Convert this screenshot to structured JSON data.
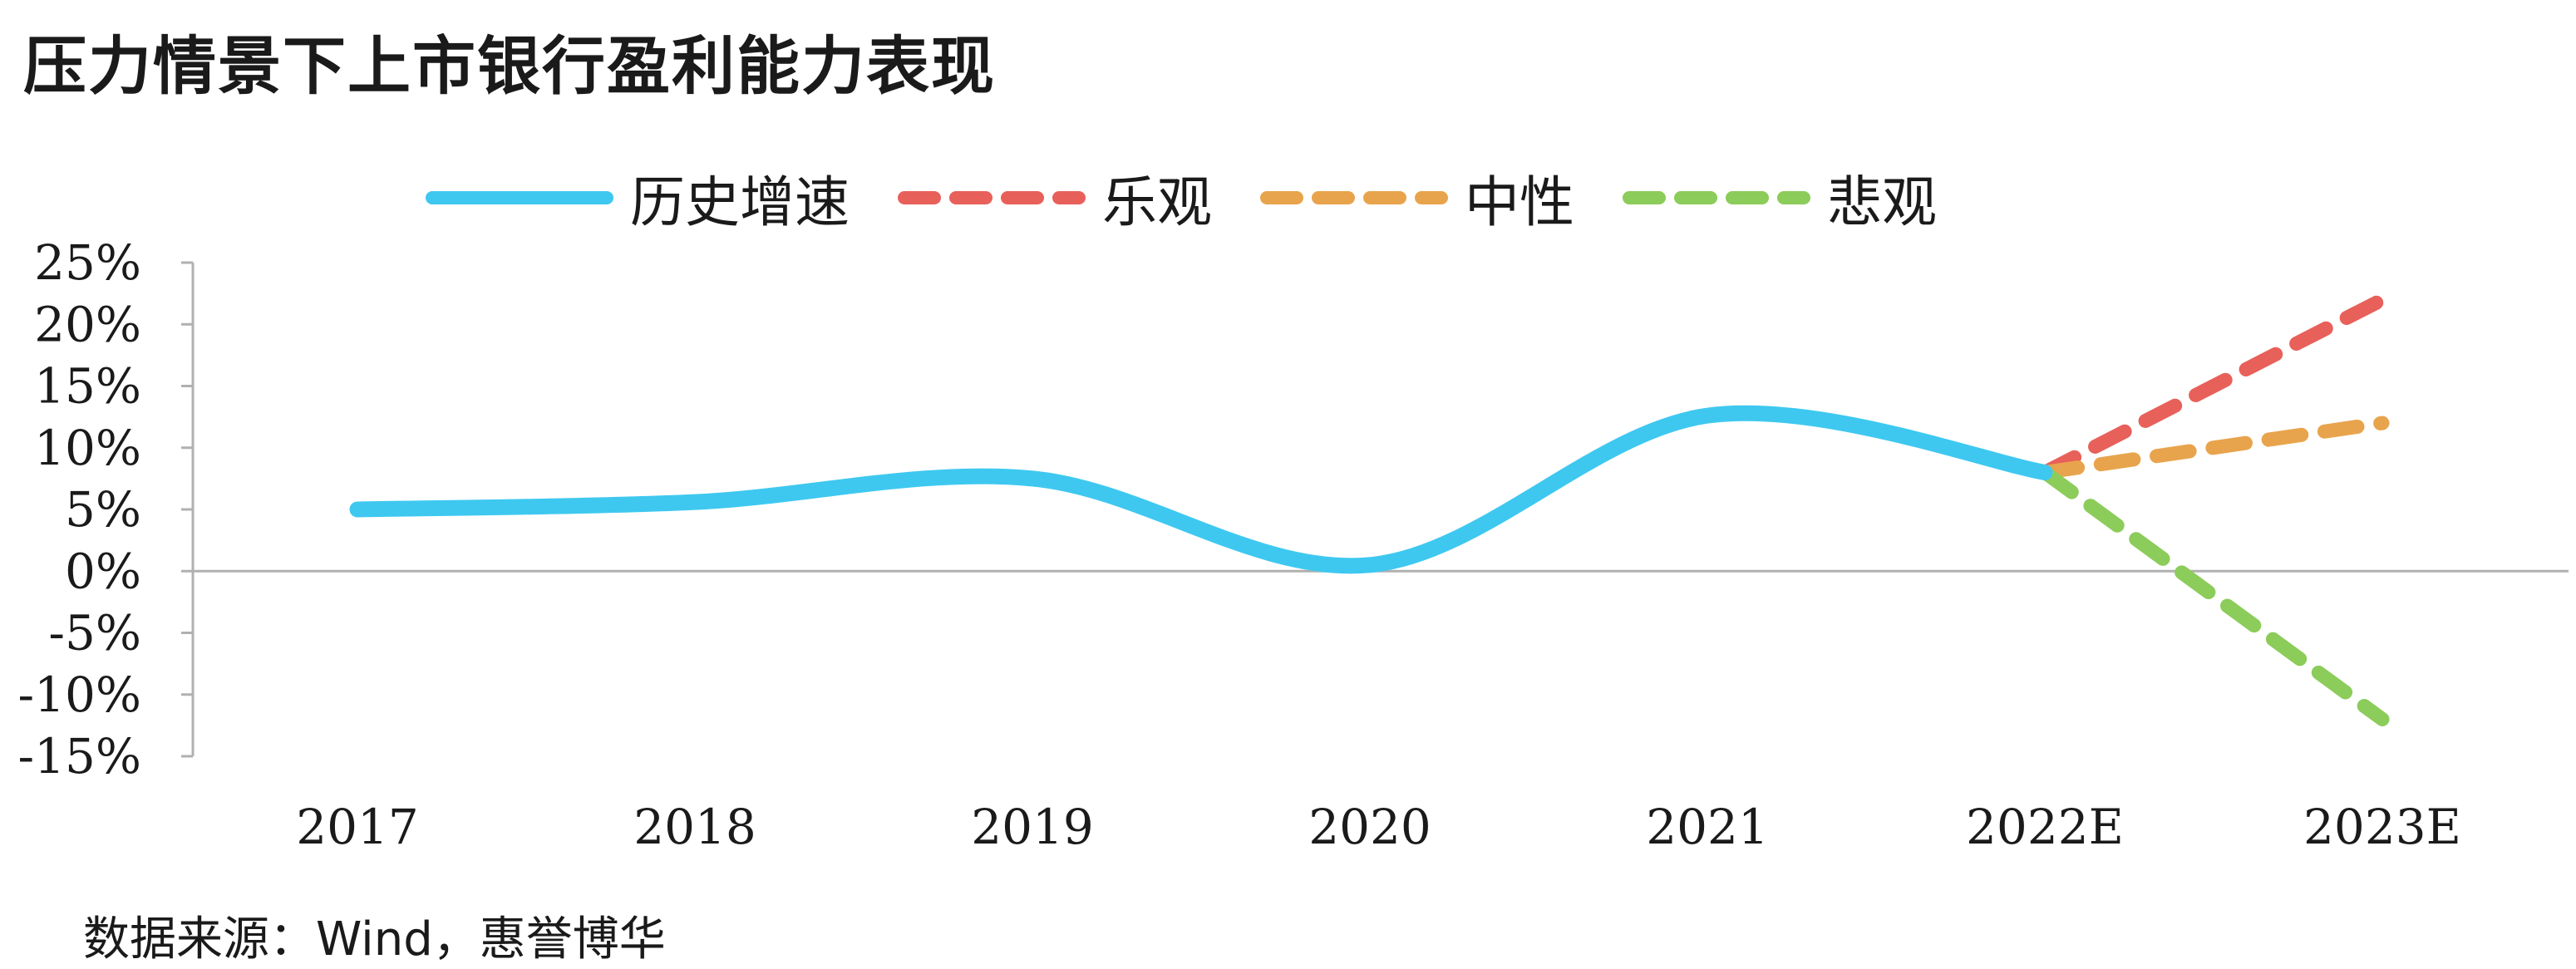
{
  "title": "压力情景下上市银行盈利能力表现",
  "source": "数据来源：Wind，惠誉博华",
  "chart_data": {
    "type": "line",
    "title": "压力情景下上市银行盈利能力表现",
    "xlabel": "",
    "ylabel": "",
    "categories": [
      "2017",
      "2018",
      "2019",
      "2020",
      "2021",
      "2022E",
      "2023E"
    ],
    "ylim": [
      -15,
      25
    ],
    "yticks": [
      25,
      20,
      15,
      10,
      5,
      0,
      -5,
      -10,
      -15
    ],
    "ytick_labels": [
      "25%",
      "20%",
      "15%",
      "10%",
      "5%",
      "0%",
      "-5%",
      "-10%",
      "-15%"
    ],
    "legend_position": "top",
    "grid": false,
    "series": [
      {
        "name": "历史增速",
        "color": "#3ec8f0",
        "style": "solid",
        "smooth": true,
        "points": [
          [
            "2017",
            5.0
          ],
          [
            "2018",
            5.6
          ],
          [
            "2019",
            7.5
          ],
          [
            "2020",
            0.5
          ],
          [
            "2021",
            12.6
          ],
          [
            "2022E",
            8.0
          ]
        ]
      },
      {
        "name": "乐观",
        "color": "#e8605a",
        "style": "dashed",
        "smooth": false,
        "points": [
          [
            "2022E",
            8.0
          ],
          [
            "2023E",
            22.0
          ]
        ]
      },
      {
        "name": "中性",
        "color": "#e8a44c",
        "style": "dashed",
        "smooth": false,
        "points": [
          [
            "2022E",
            8.0
          ],
          [
            "2023E",
            12.0
          ]
        ]
      },
      {
        "name": "悲观",
        "color": "#8ccc5a",
        "style": "dashed",
        "smooth": false,
        "points": [
          [
            "2022E",
            8.0
          ],
          [
            "2023E",
            -12.0
          ]
        ]
      }
    ]
  }
}
